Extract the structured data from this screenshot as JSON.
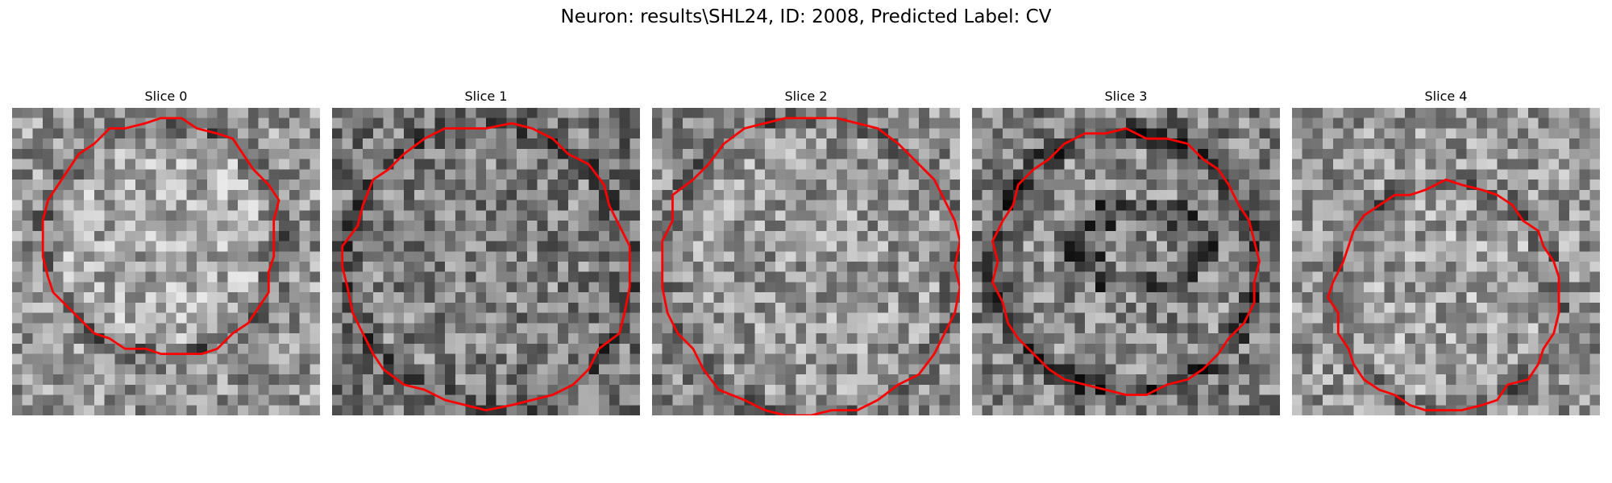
{
  "figure": {
    "title": "Neuron: results\\SHL24, ID: 2008, Predicted Label: CV"
  },
  "colors": {
    "contour": "#ff0000",
    "background": "#ffffff",
    "colormap": "gray"
  },
  "panels": [
    {
      "title": "Slice 0"
    },
    {
      "title": "Slice 1"
    },
    {
      "title": "Slice 2"
    },
    {
      "title": "Slice 3"
    },
    {
      "title": "Slice 4"
    }
  ]
}
